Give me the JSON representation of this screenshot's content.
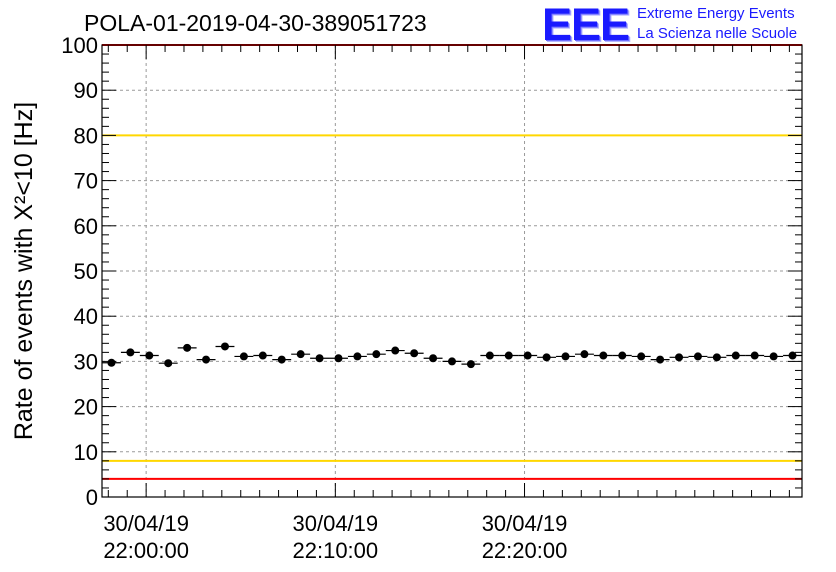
{
  "header": {
    "run_title": "POLA-01-2019-04-30-389051723",
    "logo_text": "EEE",
    "logo_line1": "Extreme Energy Events",
    "logo_line2": "La Scienza nelle Scuole"
  },
  "colors": {
    "red_limit": "#ff0000",
    "yellow_limit": "#ffd700",
    "marker": "#000000",
    "logo": "#1a1aff"
  },
  "chart_data": {
    "type": "scatter",
    "title": "POLA-01-2019-04-30-389051723",
    "ylabel": "Rate of events with X²<10 [Hz]",
    "xlabel": "",
    "x_axis": "time",
    "xlim": [
      "2019-04-30 21:57:40",
      "2019-04-30 22:34:40"
    ],
    "ylim": [
      0,
      100
    ],
    "y_ticks": [
      0,
      10,
      20,
      30,
      40,
      50,
      60,
      70,
      80,
      90,
      100
    ],
    "x_ticks": [
      {
        "time": "2019-04-30 22:00:00",
        "date": "30/04/19",
        "clock": "22:00:00"
      },
      {
        "time": "2019-04-30 22:10:00",
        "date": "30/04/19",
        "clock": "22:10:00"
      },
      {
        "time": "2019-04-30 22:20:00",
        "date": "30/04/19",
        "clock": "22:20:00"
      }
    ],
    "grid": true,
    "reference_lines": [
      {
        "y": 100,
        "color": "red"
      },
      {
        "y": 80,
        "color": "yellow"
      },
      {
        "y": 8,
        "color": "yellow"
      },
      {
        "y": 4,
        "color": "red"
      }
    ],
    "bin_width_s": 60,
    "series": [
      {
        "x": [
          "2019-04-30 21:58:10",
          "2019-04-30 21:59:10",
          "2019-04-30 22:00:10",
          "2019-04-30 22:01:10",
          "2019-04-30 22:02:10",
          "2019-04-30 22:03:10",
          "2019-04-30 22:04:10",
          "2019-04-30 22:05:10",
          "2019-04-30 22:06:10",
          "2019-04-30 22:07:10",
          "2019-04-30 22:08:10",
          "2019-04-30 22:09:10",
          "2019-04-30 22:10:10",
          "2019-04-30 22:11:10",
          "2019-04-30 22:12:10",
          "2019-04-30 22:13:10",
          "2019-04-30 22:14:10",
          "2019-04-30 22:15:10",
          "2019-04-30 22:16:10",
          "2019-04-30 22:17:10",
          "2019-04-30 22:18:10",
          "2019-04-30 22:19:10",
          "2019-04-30 22:20:10",
          "2019-04-30 22:21:10",
          "2019-04-30 22:22:10",
          "2019-04-30 22:23:10",
          "2019-04-30 22:24:10",
          "2019-04-30 22:25:10",
          "2019-04-30 22:26:10",
          "2019-04-30 22:27:10",
          "2019-04-30 22:28:10",
          "2019-04-30 22:29:10",
          "2019-04-30 22:30:10",
          "2019-04-30 22:31:10",
          "2019-04-30 22:32:10",
          "2019-04-30 22:33:10",
          "2019-04-30 22:34:10"
        ],
        "values": [
          29.7,
          32.0,
          31.3,
          29.6,
          33.0,
          30.4,
          33.3,
          31.1,
          31.3,
          30.4,
          31.6,
          30.7,
          30.7,
          31.1,
          31.6,
          32.4,
          31.8,
          30.7,
          30.0,
          29.4,
          31.3,
          31.3,
          31.3,
          30.9,
          31.1,
          31.6,
          31.3,
          31.3,
          31.1,
          30.4,
          30.9,
          31.1,
          30.9,
          31.3,
          31.3,
          31.1,
          31.3
        ]
      }
    ]
  }
}
